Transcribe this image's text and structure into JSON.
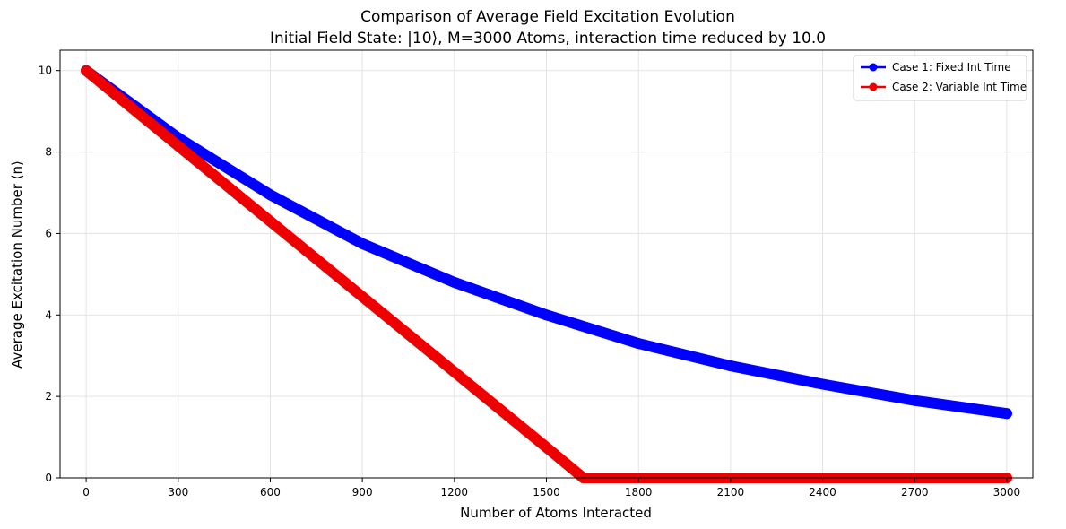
{
  "chart_data": {
    "type": "line",
    "title": "Comparison of Average Field Excitation Evolution",
    "subtitle": "Initial Field State: |10⟩, M=3000 Atoms, interaction time reduced by 10.0",
    "xlabel": "Number of Atoms Interacted",
    "ylabel": "Average Excitation Number ⟨n⟩",
    "xlim": [
      -85,
      3085
    ],
    "ylim": [
      0,
      10.5
    ],
    "xticks": [
      0,
      300,
      600,
      900,
      1200,
      1500,
      1800,
      2100,
      2400,
      2700,
      3000
    ],
    "yticks": [
      0,
      2,
      4,
      6,
      8,
      10
    ],
    "grid": true,
    "legend_position": "upper right",
    "series": [
      {
        "name": "Case 1: Fixed Int Time",
        "color": "#0000ff",
        "marker": "circle",
        "x": [
          0,
          300,
          600,
          900,
          1200,
          1500,
          1800,
          2100,
          2400,
          2700,
          3000
        ],
        "y": [
          10.0,
          8.35,
          6.95,
          5.75,
          4.8,
          4.0,
          3.3,
          2.75,
          2.3,
          1.9,
          1.58
        ]
      },
      {
        "name": "Case 2: Variable Int Time",
        "color": "#ee0000",
        "marker": "circle",
        "x": [
          0,
          300,
          600,
          900,
          1200,
          1500,
          1620,
          1800,
          2100,
          2400,
          2700,
          3000
        ],
        "y": [
          10.0,
          8.15,
          6.3,
          4.45,
          2.6,
          0.75,
          0.0,
          0.0,
          0.0,
          0.0,
          0.0,
          0.0
        ]
      }
    ]
  }
}
